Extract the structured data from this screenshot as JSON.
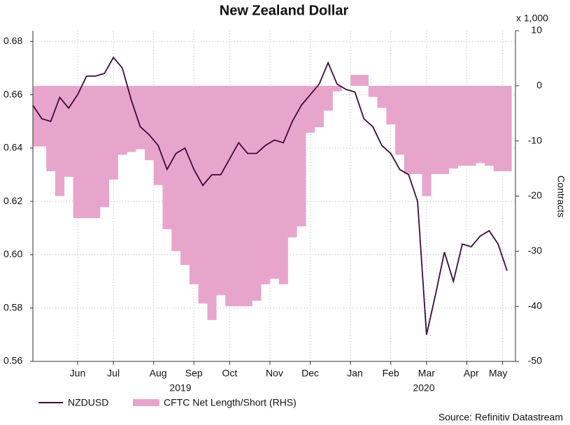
{
  "chart_data": {
    "type": "line",
    "title": "New Zealand Dollar",
    "y2_unit_label": "x 1,000",
    "y2_label": "Contracts",
    "source": "Source: Refinitiv Datastream",
    "year_labels": [
      "2019",
      "2020"
    ],
    "categories": [
      null,
      null,
      null,
      null,
      null,
      "Jun",
      null,
      null,
      null,
      "Jul",
      null,
      null,
      null,
      null,
      "Aug",
      null,
      null,
      null,
      "Sep",
      null,
      null,
      null,
      "Oct",
      null,
      null,
      null,
      null,
      "Nov",
      null,
      null,
      null,
      "Dec",
      null,
      null,
      null,
      null,
      "Jan",
      null,
      null,
      null,
      "Feb",
      null,
      null,
      null,
      "Mar",
      null,
      null,
      null,
      null,
      "Apr",
      null,
      null,
      "May",
      null
    ],
    "ylim": [
      0.56,
      0.684
    ],
    "yticks": [
      0.56,
      0.58,
      {
        "value": 0.6,
        "label": "0.60"
      },
      0.62,
      0.64,
      0.66,
      0.68
    ],
    "y2lim": [
      -50,
      10
    ],
    "y2ticks": [
      -50,
      -40,
      -30,
      -20,
      -10,
      0,
      10
    ],
    "grid": true,
    "legend": "bottom",
    "series": [
      {
        "name": "CFTC Net Length/Short (RHS)",
        "type": "step-area",
        "axis": "y2",
        "color": "#e8a5cc",
        "edge": "#b0608f",
        "values": [
          -11,
          -11,
          -15.5,
          -20,
          -16.5,
          -24,
          -24,
          -24,
          -22,
          -17,
          -12.5,
          -12,
          -11.5,
          -13.5,
          -18,
          -26,
          -30,
          -32.5,
          -36,
          -39.5,
          -42.5,
          -38,
          -40,
          -40,
          -40,
          -39,
          -36,
          -35,
          -36,
          -27.5,
          -25.5,
          -8.5,
          -7.5,
          -4.5,
          -1,
          0,
          2,
          2,
          -2,
          -4,
          -7,
          -12.5,
          -16,
          -16,
          -20,
          -16,
          -16,
          -15,
          -14.5,
          -14.5,
          -14,
          -14.5,
          -15.5,
          -15.5
        ]
      },
      {
        "name": "NZDUSD",
        "type": "line",
        "color": "#3b0a3d",
        "values": [
          0.656,
          0.651,
          0.65,
          0.659,
          0.655,
          0.66,
          0.667,
          0.667,
          0.668,
          0.674,
          0.67,
          0.658,
          0.648,
          0.645,
          0.641,
          0.632,
          0.638,
          0.64,
          0.632,
          0.626,
          0.63,
          0.63,
          0.636,
          0.642,
          0.638,
          0.638,
          0.641,
          0.643,
          0.642,
          0.65,
          0.656,
          0.66,
          0.664,
          0.672,
          0.664,
          0.662,
          0.661,
          0.651,
          0.648,
          0.641,
          0.638,
          0.632,
          0.63,
          0.62,
          0.57,
          0.585,
          0.601,
          0.59,
          0.604,
          0.603,
          0.607,
          0.609,
          0.604,
          0.594
        ]
      }
    ]
  }
}
